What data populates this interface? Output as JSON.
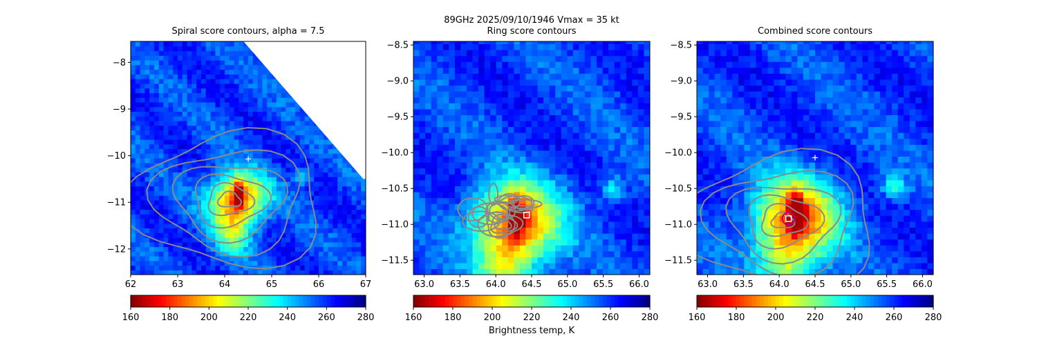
{
  "figure": {
    "suptitle": "89GHz  2025/09/10/1946    Vmax = 35 kt",
    "colorbar_label": "Brightness temp, K"
  },
  "colors": {
    "contour": "#8a8a8a",
    "marker": "#ffffff",
    "circle": "#c0006a"
  },
  "chart_data": [
    {
      "type": "heatmap",
      "title": "Spiral score contours, alpha =  7.5",
      "xlim": [
        62,
        67
      ],
      "ylim": [
        -12.55,
        -7.55
      ],
      "xticks": [
        62,
        63,
        64,
        65,
        66,
        67
      ],
      "yticks": [
        -12,
        -11,
        -10,
        -9,
        -8
      ],
      "colorbar": {
        "cmap": "jet_r",
        "range": [
          160,
          280
        ],
        "ticks": [
          160,
          180,
          200,
          220,
          240,
          260,
          280
        ]
      },
      "field_min_K": 165,
      "field_max_K": 275,
      "cold_core": [
        64.25,
        -10.95
      ],
      "plus_marker": [
        64.5,
        -10.07
      ],
      "swath_edge": [
        [
          64.4,
          -7.55
        ],
        [
          66.95,
          -10.5
        ]
      ],
      "grid": false
    },
    {
      "type": "heatmap",
      "title": "Ring score contours",
      "xlim": [
        62.85,
        66.15
      ],
      "ylim": [
        -11.7,
        -8.45
      ],
      "xticks": [
        63.0,
        63.5,
        64.0,
        64.5,
        65.0,
        65.5,
        66.0
      ],
      "yticks": [
        -11.5,
        -11.0,
        -10.5,
        -10.0,
        -9.5,
        -9.0,
        -8.5
      ],
      "colorbar": {
        "cmap": "jet_r",
        "range": [
          160,
          280
        ],
        "ticks": [
          160,
          180,
          200,
          220,
          240,
          260,
          280
        ]
      },
      "field_min_K": 165,
      "field_max_K": 275,
      "cold_core": [
        64.25,
        -11.0
      ],
      "square_marker": [
        64.43,
        -10.87
      ],
      "grid": false
    },
    {
      "type": "heatmap",
      "title": "Combined score contours",
      "xlim": [
        62.85,
        66.15
      ],
      "ylim": [
        -11.7,
        -8.45
      ],
      "xticks": [
        63.0,
        63.5,
        64.0,
        64.5,
        65.0,
        65.5,
        66.0
      ],
      "yticks": [
        -11.5,
        -11.0,
        -10.5,
        -10.0,
        -9.5,
        -9.0,
        -8.5
      ],
      "colorbar": {
        "cmap": "jet_r",
        "range": [
          160,
          280
        ],
        "ticks": [
          160,
          180,
          200,
          220,
          240,
          260,
          280
        ]
      },
      "field_min_K": 165,
      "field_max_K": 275,
      "cold_core": [
        64.2,
        -10.95
      ],
      "plus_marker": [
        64.5,
        -10.07
      ],
      "square_marker": [
        64.13,
        -10.92
      ],
      "circle_marker": [
        64.13,
        -10.92
      ],
      "grid": false
    }
  ]
}
